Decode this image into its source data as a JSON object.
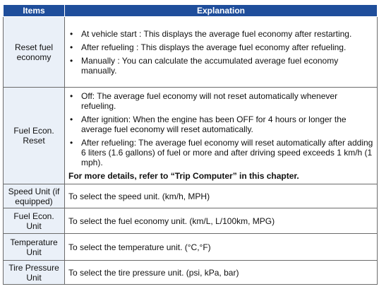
{
  "header": {
    "items": "Items",
    "explanation": "Explanation"
  },
  "bullet": "•",
  "rows": [
    {
      "item": "Reset fuel economy",
      "bullets": [
        "At vehicle start : This displays the average fuel economy after restarting.",
        "After refueling : This displays the average fuel economy after refueling.",
        "Manually : You can calculate the accumulated average fuel economy manually."
      ]
    },
    {
      "item": "Fuel Econ. Reset",
      "bullets": [
        "Off: The average fuel economy will not reset automatically whenever refueling.",
        "After ignition: When the engine has been OFF for 4 hours or longer the average fuel economy will reset automatically.",
        "After refueling: The average fuel economy will reset automatically after adding 6 liters (1.6 gallons) of fuel or more and after driving speed exceeds 1 km/h (1 mph)."
      ],
      "note": "For more details, refer to “Trip Computer” in this chapter."
    },
    {
      "item": "Speed Unit (if equipped)",
      "text": "To select the speed unit. (km/h, MPH)"
    },
    {
      "item": "Fuel Econ. Unit",
      "text": "To select the fuel economy unit. (km/L, L/100km, MPG)"
    },
    {
      "item": "Temperature Unit",
      "text": "To select the temperature unit. (°C,°F)"
    },
    {
      "item": "Tire Pressure Unit",
      "text": "To select the tire pressure unit. (psi, kPa, bar)"
    }
  ]
}
